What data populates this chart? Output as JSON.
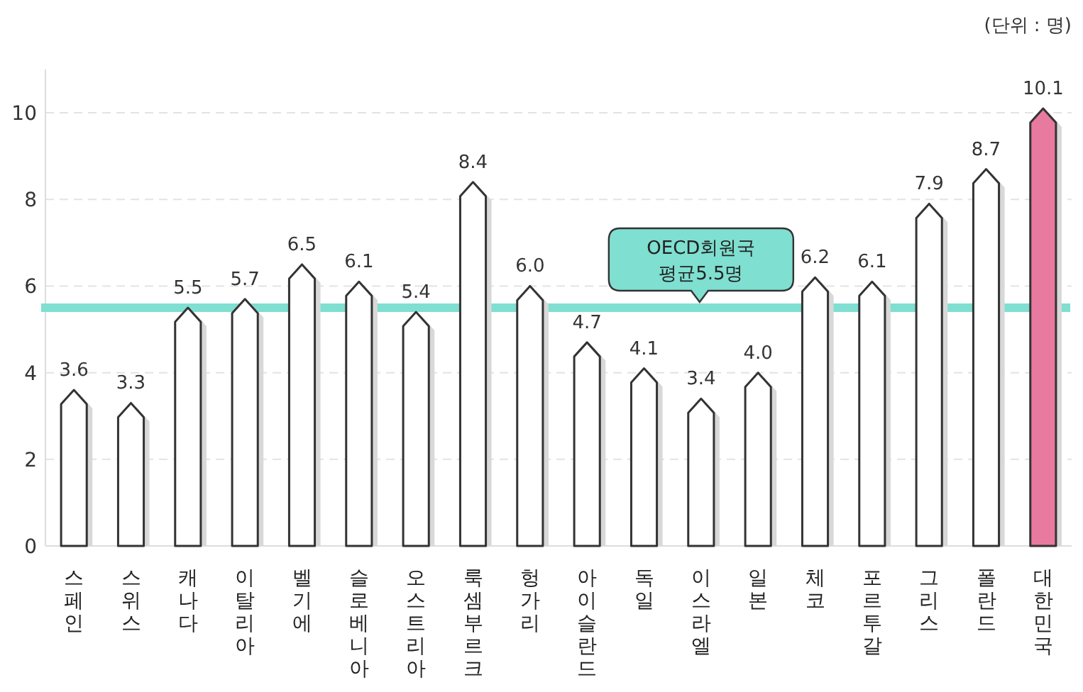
{
  "chart_data": {
    "type": "bar",
    "categories": [
      "스페인",
      "스위스",
      "캐나다",
      "이탈리아",
      "벨기에",
      "슬로베니아",
      "오스트리아",
      "룩셈부르크",
      "헝가리",
      "아이슬란드",
      "독일",
      "이스라엘",
      "일본",
      "체코",
      "포르투갈",
      "그리스",
      "폴란드",
      "대한민국"
    ],
    "values": [
      3.6,
      3.3,
      5.5,
      5.7,
      6.5,
      6.1,
      5.4,
      8.4,
      6.0,
      4.7,
      4.1,
      3.4,
      4.0,
      6.2,
      6.1,
      7.9,
      8.7,
      10.1
    ],
    "value_labels": [
      "3.6",
      "3.3",
      "5.5",
      "5.7",
      "6.5",
      "6.1",
      "5.4",
      "8.4",
      "6.0",
      "4.7",
      "4.1",
      "3.4",
      "4.0",
      "6.2",
      "6.1",
      "7.9",
      "8.7",
      "10.1"
    ],
    "colors": [
      "#ffffff",
      "#ffffff",
      "#ffffff",
      "#ffffff",
      "#ffffff",
      "#ffffff",
      "#ffffff",
      "#ffffff",
      "#ffffff",
      "#ffffff",
      "#ffffff",
      "#ffffff",
      "#ffffff",
      "#ffffff",
      "#ffffff",
      "#ffffff",
      "#ffffff",
      "#e8799f"
    ],
    "ylim": [
      0,
      11
    ],
    "yticks": [
      0,
      2,
      4,
      6,
      8,
      10
    ],
    "grid": "y",
    "ref_lines": [
      {
        "axis": "y",
        "value": 5.5,
        "label": "OECD회원국 평균5.5명",
        "color": "#7fdfd0"
      }
    ],
    "annotations": [
      "(단위 : 명)"
    ]
  }
}
